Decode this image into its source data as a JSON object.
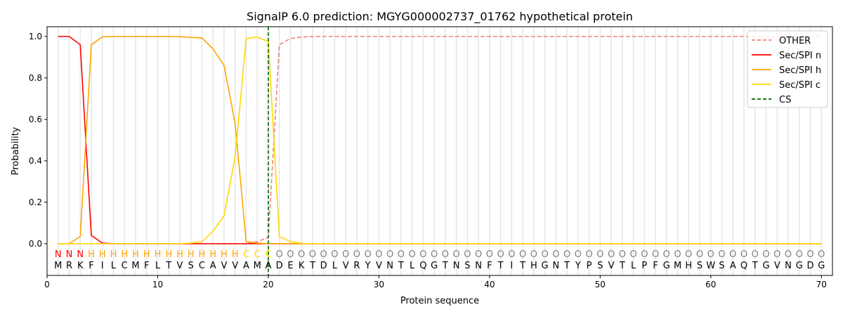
{
  "chart_data": {
    "type": "line",
    "title": "SignalP 6.0 prediction: MGYG000002737_01762 hypothetical protein",
    "xlabel": "Protein sequence",
    "ylabel": "Probability",
    "xlim": [
      0,
      71
    ],
    "ylim": [
      -0.153,
      1.047
    ],
    "xticks": [
      0,
      10,
      20,
      30,
      40,
      50,
      60,
      70
    ],
    "yticks": [
      0.0,
      0.2,
      0.4,
      0.6,
      0.8,
      1.0
    ],
    "legend_position": "top-right",
    "sequence": "MRKFILCMFLTVSCAVVAMADEKTDLVRYVNTLQGTNSNFTITHGNTYPSVTLPFGMHSWSAQTGVNGDG",
    "region_labels": "NNNHHHHHHHHHHHHHHCCCOOOOOOOOOOOOOOOOOOOOOOOOOOOOOOOOOOOOOOOOOOOOOOOOOO",
    "region_colors": {
      "N": "#ff0000",
      "H": "#ffa500",
      "C": "#ffd700",
      "O": "#808080"
    },
    "cleavage_site": 20,
    "series": [
      {
        "name": "OTHER",
        "color": "#f08080",
        "dash": true,
        "values": [
          0,
          0,
          0,
          0,
          0,
          0,
          0,
          0,
          0,
          0,
          0,
          0,
          0,
          0,
          0,
          0,
          0,
          0,
          0.01,
          0.03,
          0.96,
          0.99,
          0.997,
          1,
          1,
          1,
          1,
          1,
          1,
          1,
          1,
          1,
          1,
          1,
          1,
          1,
          1,
          1,
          1,
          1,
          1,
          1,
          1,
          1,
          1,
          1,
          1,
          1,
          1,
          1,
          1,
          1,
          1,
          1,
          1,
          1,
          1,
          1,
          1,
          1,
          1,
          1,
          1,
          1,
          1,
          1,
          1,
          1,
          1,
          1
        ]
      },
      {
        "name": "Sec/SPI n",
        "color": "#ff0000",
        "dash": false,
        "values": [
          1,
          1,
          0.96,
          0.04,
          0.003,
          0,
          0,
          0,
          0,
          0,
          0,
          0,
          0,
          0,
          0,
          0,
          0,
          0,
          0,
          0,
          0,
          0,
          0,
          0,
          0,
          0,
          0,
          0,
          0,
          0,
          0,
          0,
          0,
          0,
          0,
          0,
          0,
          0,
          0,
          0,
          0,
          0,
          0,
          0,
          0,
          0,
          0,
          0,
          0,
          0,
          0,
          0,
          0,
          0,
          0,
          0,
          0,
          0,
          0,
          0,
          0,
          0,
          0,
          0,
          0,
          0,
          0,
          0,
          0,
          0
        ]
      },
      {
        "name": "Sec/SPI h",
        "color": "#ffa500",
        "dash": false,
        "values": [
          0,
          0,
          0.035,
          0.96,
          0.998,
          1,
          1,
          1,
          1,
          1,
          1,
          0.999,
          0.995,
          0.993,
          0.94,
          0.86,
          0.58,
          0.01,
          0.003,
          0,
          0,
          0,
          0,
          0,
          0,
          0,
          0,
          0,
          0,
          0,
          0,
          0,
          0,
          0,
          0,
          0,
          0,
          0,
          0,
          0,
          0,
          0,
          0,
          0,
          0,
          0,
          0,
          0,
          0,
          0,
          0,
          0,
          0,
          0,
          0,
          0,
          0,
          0,
          0,
          0,
          0,
          0,
          0,
          0,
          0,
          0,
          0,
          0,
          0,
          0
        ]
      },
      {
        "name": "Sec/SPI c",
        "color": "#ffd700",
        "dash": false,
        "values": [
          0,
          0,
          0,
          0,
          0,
          0,
          0,
          0,
          0,
          0,
          0,
          0,
          0.003,
          0.01,
          0.06,
          0.135,
          0.42,
          0.99,
          0.997,
          0.975,
          0.035,
          0.01,
          0.002,
          0,
          0,
          0,
          0,
          0,
          0,
          0,
          0,
          0,
          0,
          0,
          0,
          0,
          0,
          0,
          0,
          0,
          0,
          0,
          0,
          0,
          0,
          0,
          0,
          0,
          0,
          0,
          0,
          0,
          0,
          0,
          0,
          0,
          0,
          0,
          0,
          0,
          0,
          0,
          0,
          0,
          0,
          0,
          0,
          0,
          0,
          0
        ]
      },
      {
        "name": "CS",
        "color": "#006400",
        "dash": true,
        "values": []
      }
    ]
  }
}
